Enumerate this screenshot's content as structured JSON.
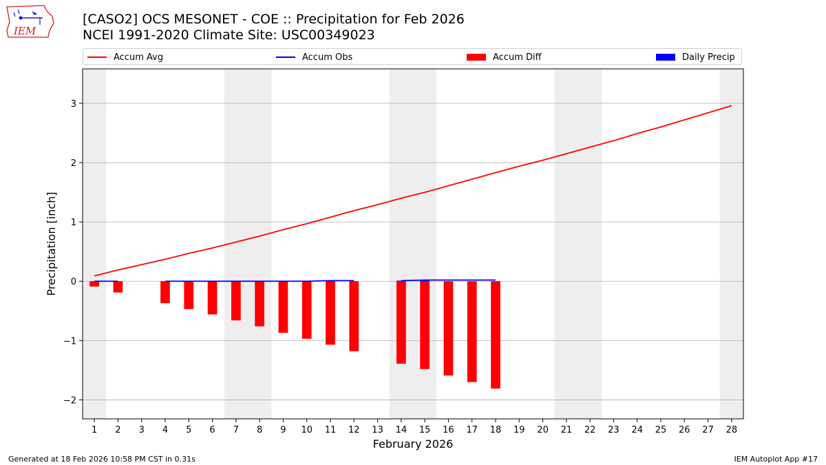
{
  "header": {
    "title_line1": "[CASO2] OCS MESONET - COE :: Precipitation for Feb 2026",
    "title_line2": "NCEI 1991-2020 Climate Site: USC00349023",
    "logo_text": "IEM"
  },
  "footer": {
    "generated": "Generated at 18 Feb 2026 10:58 PM CST in 0.31s",
    "app": "IEM Autoplot App #17"
  },
  "colors": {
    "accum_avg": "#ff0000",
    "accum_obs": "#0000ff",
    "accum_diff": "#ff0000",
    "daily_precip": "#0000ff",
    "weekend_band": "#eeeeee",
    "grid": "#b0b0b0"
  },
  "chart_data": {
    "type": "bar",
    "xlabel": "February 2026",
    "ylabel": "Precipitation [inch]",
    "xlim": [
      0.5,
      28.5
    ],
    "ylim": [
      -2.32,
      3.58
    ],
    "x_ticks": [
      1,
      2,
      3,
      4,
      5,
      6,
      7,
      8,
      9,
      10,
      11,
      12,
      13,
      14,
      15,
      16,
      17,
      18,
      19,
      20,
      21,
      22,
      23,
      24,
      25,
      26,
      27,
      28
    ],
    "y_ticks": [
      -2,
      -1,
      0,
      1,
      2,
      3
    ],
    "y_tick_labels": [
      "−2",
      "−1",
      "0",
      "1",
      "2",
      "3"
    ],
    "grid": "horizontal",
    "legend": {
      "placement": "top",
      "entries": [
        "Accum Avg",
        "Accum Obs",
        "Accum Diff",
        "Daily Precip"
      ]
    },
    "weekend_bands": [
      [
        0.5,
        1.5
      ],
      [
        6.5,
        8.5
      ],
      [
        13.5,
        15.5
      ],
      [
        20.5,
        22.5
      ],
      [
        27.5,
        28.5
      ]
    ],
    "series": [
      {
        "name": "Accum Avg",
        "type": "line",
        "x": [
          1,
          2,
          3,
          4,
          5,
          6,
          7,
          8,
          9,
          10,
          11,
          12,
          13,
          14,
          15,
          16,
          17,
          18,
          19,
          20,
          21,
          22,
          23,
          24,
          25,
          26,
          27,
          28
        ],
        "values": [
          0.09,
          0.19,
          0.28,
          0.37,
          0.47,
          0.56,
          0.66,
          0.76,
          0.87,
          0.97,
          1.08,
          1.19,
          1.29,
          1.4,
          1.5,
          1.61,
          1.72,
          1.83,
          1.94,
          2.04,
          2.15,
          2.26,
          2.37,
          2.49,
          2.6,
          2.72,
          2.84,
          2.96
        ]
      },
      {
        "name": "Accum Obs",
        "type": "line",
        "segments": [
          {
            "x": [
              1,
              2
            ],
            "values": [
              0.0,
              0.0
            ]
          },
          {
            "x": [
              4,
              5,
              6,
              7,
              8,
              9,
              10,
              11,
              12
            ],
            "values": [
              0.0,
              0.0,
              0.0,
              0.0,
              0.0,
              0.0,
              0.0,
              0.01,
              0.01
            ]
          },
          {
            "x": [
              14,
              15,
              16,
              17,
              18
            ],
            "values": [
              0.01,
              0.02,
              0.02,
              0.02,
              0.02
            ]
          }
        ]
      },
      {
        "name": "Accum Diff",
        "type": "bar",
        "x": [
          1,
          2,
          4,
          5,
          6,
          7,
          8,
          9,
          10,
          11,
          12,
          14,
          15,
          16,
          17,
          18
        ],
        "values": [
          -0.09,
          -0.19,
          -0.37,
          -0.47,
          -0.56,
          -0.66,
          -0.76,
          -0.87,
          -0.97,
          -1.07,
          -1.18,
          -1.39,
          -1.48,
          -1.59,
          -1.7,
          -1.81
        ]
      },
      {
        "name": "Daily Precip",
        "type": "bar",
        "x": [
          11,
          14,
          15
        ],
        "values": [
          0.01,
          0.01,
          0.01
        ]
      }
    ]
  }
}
